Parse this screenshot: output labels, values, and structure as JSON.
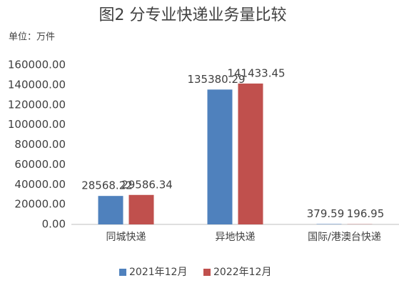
{
  "chart_data": {
    "type": "bar",
    "title": "图2  分专业快递业务量比较",
    "y_axis_label": "单位：万件",
    "categories": [
      "同城快递",
      "异地快递",
      "国际/港澳台快递"
    ],
    "series": [
      {
        "name": "2021年12月",
        "color": "#4f81bd",
        "values": [
          28568.22,
          135380.29,
          379.59
        ]
      },
      {
        "name": "2022年12月",
        "color": "#c0504d",
        "values": [
          29586.34,
          141433.45,
          196.95
        ]
      }
    ],
    "ylim": [
      0,
      160000
    ],
    "yticks": [
      {
        "value": 0,
        "label": "0.00"
      },
      {
        "value": 20000,
        "label": "20000.00"
      },
      {
        "value": 40000,
        "label": "40000.00"
      },
      {
        "value": 60000,
        "label": "60000.00"
      },
      {
        "value": 80000,
        "label": "80000.00"
      },
      {
        "value": 100000,
        "label": "100000.00"
      },
      {
        "value": 120000,
        "label": "120000.00"
      },
      {
        "value": 140000,
        "label": "140000.00"
      },
      {
        "value": 160000,
        "label": "160000.00"
      }
    ],
    "grid": false,
    "legend": "bottom"
  }
}
